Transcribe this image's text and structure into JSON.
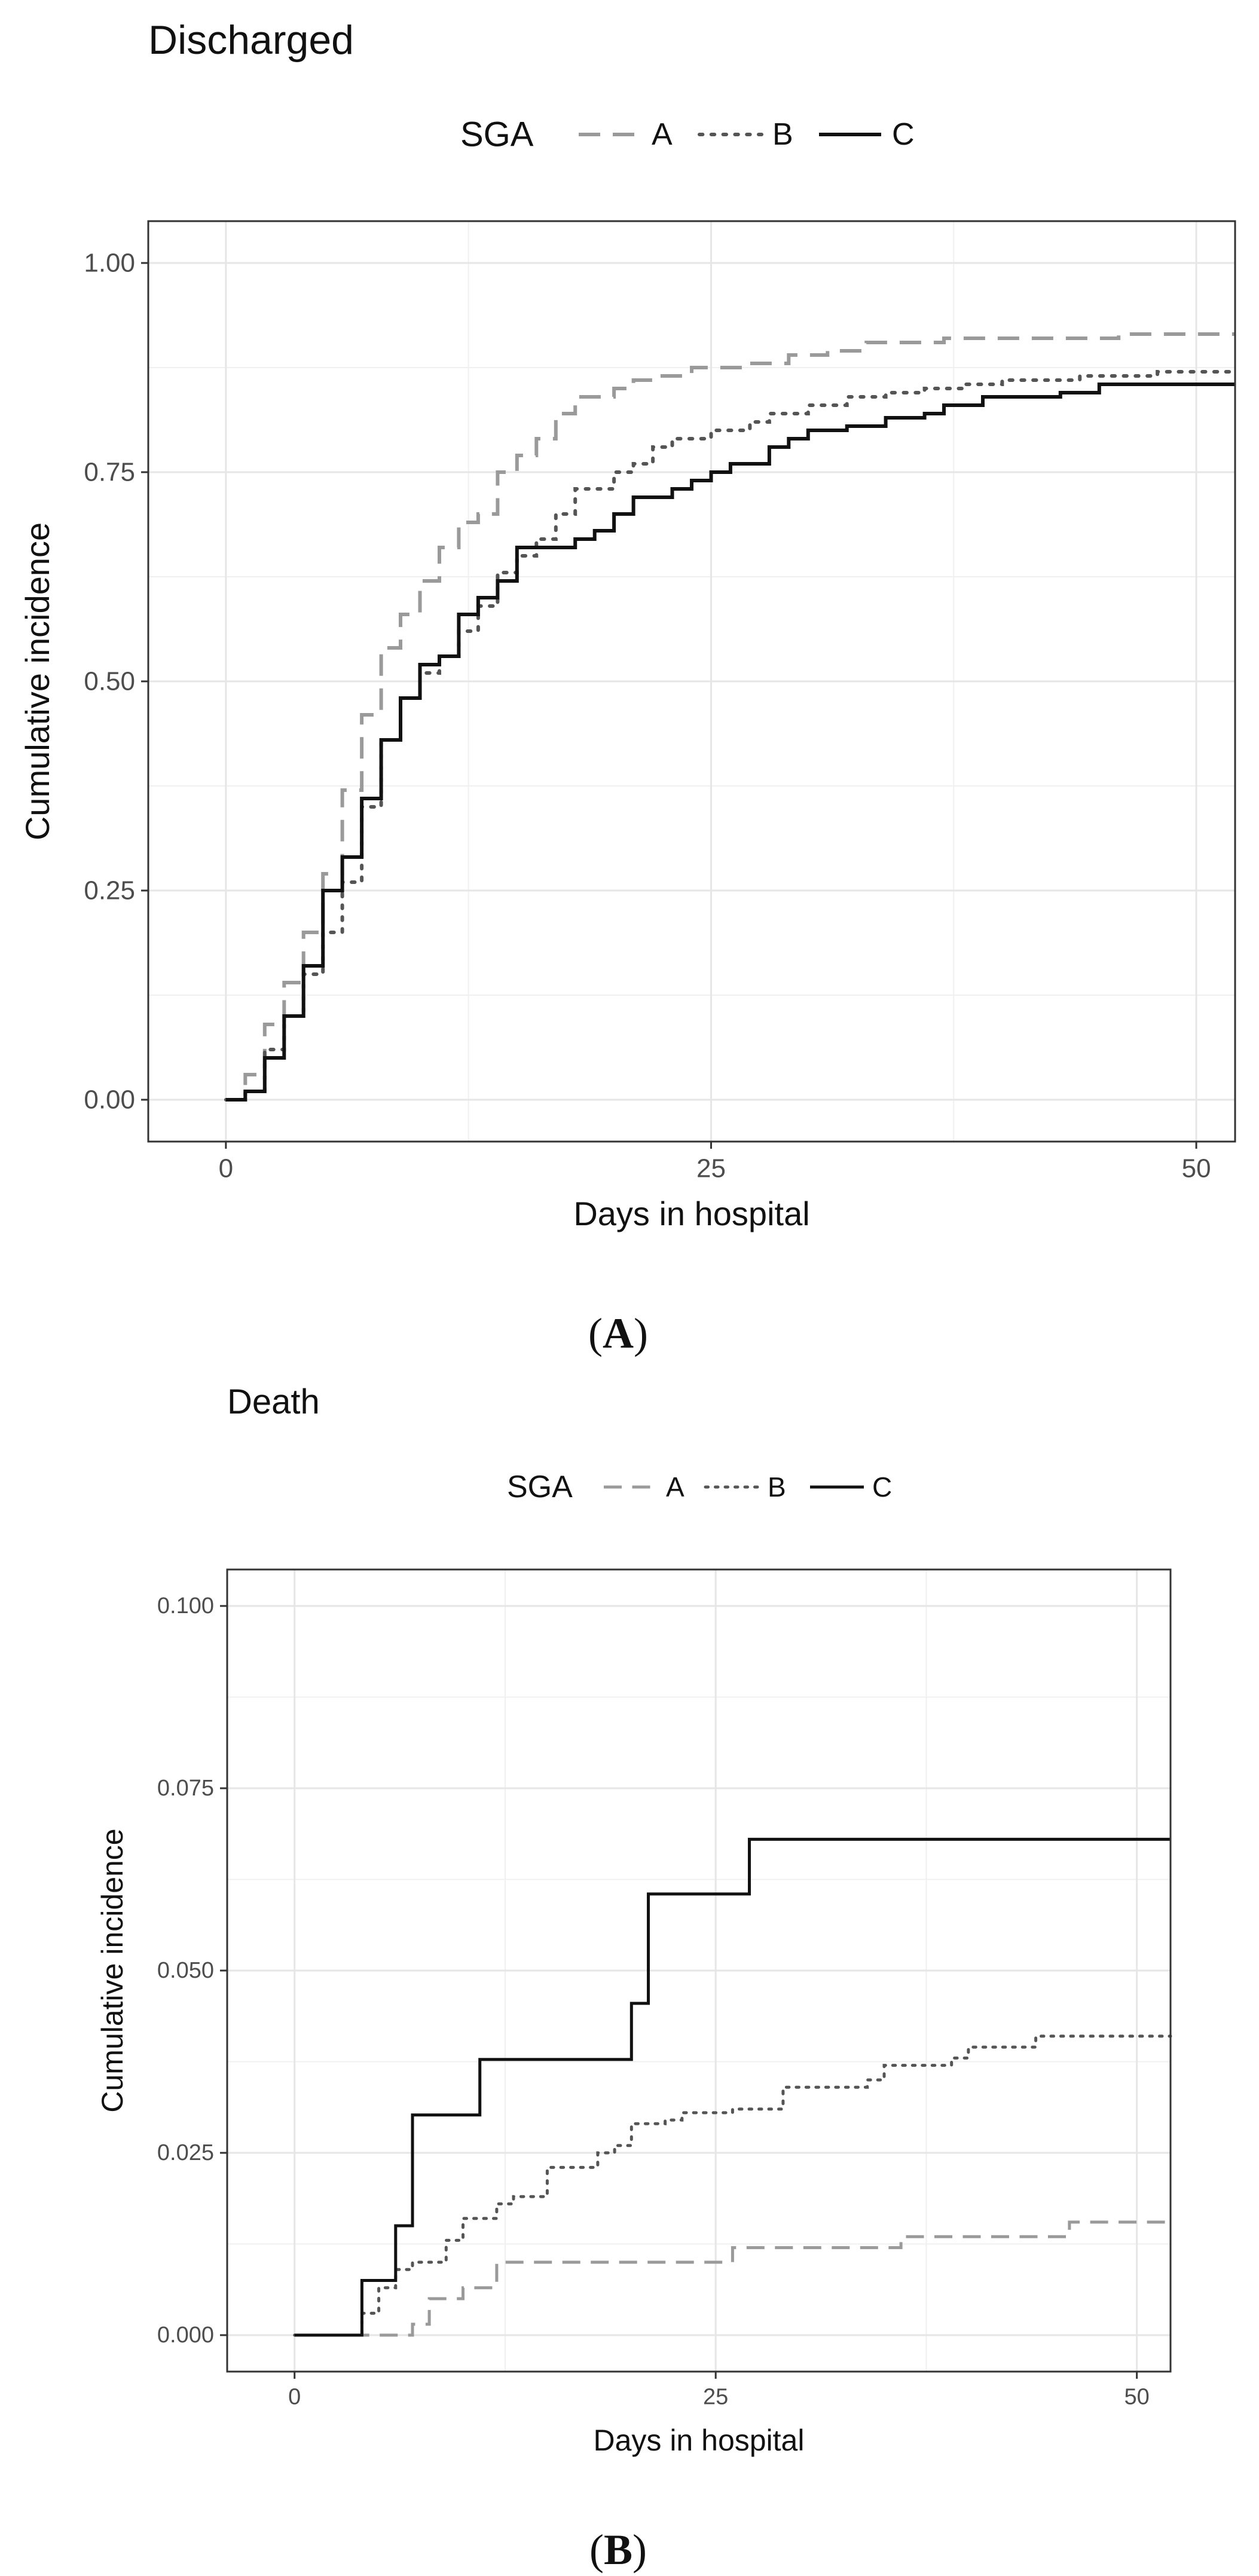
{
  "chart_data": [
    {
      "type": "line",
      "step": true,
      "panel_label": "A",
      "title": "Discharged",
      "xlabel": "Days in hospital",
      "ylabel": "Cumulative incidence",
      "xlim": [
        -4,
        52
      ],
      "ylim": [
        -0.05,
        1.05
      ],
      "x_ticks": [
        0,
        25,
        50
      ],
      "y_ticks": [
        0.0,
        0.25,
        0.5,
        0.75,
        1.0
      ],
      "x_tick_labels": [
        "0",
        "25",
        "50"
      ],
      "y_tick_labels": [
        "0.00",
        "0.25",
        "0.50",
        "0.75",
        "1.00"
      ],
      "grid": true,
      "legend": {
        "title": "SGA",
        "position": "top",
        "entries": [
          "A",
          "B",
          "C"
        ]
      },
      "series": [
        {
          "name": "A",
          "color": "#9a9a9a",
          "dash": "dashed",
          "points": [
            [
              0,
              0
            ],
            [
              1,
              0.03
            ],
            [
              2,
              0.09
            ],
            [
              3,
              0.14
            ],
            [
              4,
              0.2
            ],
            [
              5,
              0.27
            ],
            [
              6,
              0.37
            ],
            [
              7,
              0.46
            ],
            [
              8,
              0.54
            ],
            [
              9,
              0.58
            ],
            [
              10,
              0.62
            ],
            [
              11,
              0.66
            ],
            [
              12,
              0.69
            ],
            [
              13,
              0.7
            ],
            [
              14,
              0.75
            ],
            [
              15,
              0.77
            ],
            [
              16,
              0.79
            ],
            [
              17,
              0.82
            ],
            [
              18,
              0.84
            ],
            [
              20,
              0.85
            ],
            [
              21,
              0.86
            ],
            [
              22,
              0.865
            ],
            [
              24,
              0.875
            ],
            [
              27,
              0.88
            ],
            [
              29,
              0.89
            ],
            [
              31,
              0.895
            ],
            [
              33,
              0.905
            ],
            [
              37,
              0.91
            ],
            [
              44,
              0.91
            ],
            [
              46,
              0.915
            ],
            [
              52,
              0.915
            ]
          ]
        },
        {
          "name": "B",
          "color": "#555555",
          "dash": "dotted",
          "points": [
            [
              0,
              0
            ],
            [
              1,
              0.01
            ],
            [
              2,
              0.06
            ],
            [
              3,
              0.1
            ],
            [
              4,
              0.15
            ],
            [
              5,
              0.2
            ],
            [
              6,
              0.26
            ],
            [
              7,
              0.35
            ],
            [
              8,
              0.43
            ],
            [
              9,
              0.48
            ],
            [
              10,
              0.51
            ],
            [
              11,
              0.53
            ],
            [
              12,
              0.56
            ],
            [
              13,
              0.59
            ],
            [
              14,
              0.63
            ],
            [
              15,
              0.65
            ],
            [
              16,
              0.67
            ],
            [
              17,
              0.7
            ],
            [
              18,
              0.73
            ],
            [
              20,
              0.75
            ],
            [
              21,
              0.76
            ],
            [
              22,
              0.78
            ],
            [
              23,
              0.79
            ],
            [
              25,
              0.8
            ],
            [
              27,
              0.81
            ],
            [
              28,
              0.82
            ],
            [
              30,
              0.83
            ],
            [
              32,
              0.84
            ],
            [
              34,
              0.845
            ],
            [
              36,
              0.85
            ],
            [
              38,
              0.855
            ],
            [
              40,
              0.86
            ],
            [
              44,
              0.865
            ],
            [
              48,
              0.87
            ],
            [
              52,
              0.87
            ]
          ]
        },
        {
          "name": "C",
          "color": "#111111",
          "dash": "solid",
          "points": [
            [
              0,
              0
            ],
            [
              1,
              0.01
            ],
            [
              2,
              0.05
            ],
            [
              3,
              0.1
            ],
            [
              4,
              0.16
            ],
            [
              5,
              0.25
            ],
            [
              6,
              0.29
            ],
            [
              7,
              0.36
            ],
            [
              8,
              0.43
            ],
            [
              9,
              0.48
            ],
            [
              10,
              0.52
            ],
            [
              11,
              0.53
            ],
            [
              12,
              0.58
            ],
            [
              13,
              0.6
            ],
            [
              14,
              0.62
            ],
            [
              15,
              0.66
            ],
            [
              18,
              0.67
            ],
            [
              19,
              0.68
            ],
            [
              20,
              0.7
            ],
            [
              21,
              0.72
            ],
            [
              23,
              0.73
            ],
            [
              24,
              0.74
            ],
            [
              25,
              0.75
            ],
            [
              26,
              0.76
            ],
            [
              28,
              0.78
            ],
            [
              29,
              0.79
            ],
            [
              30,
              0.8
            ],
            [
              32,
              0.805
            ],
            [
              34,
              0.815
            ],
            [
              36,
              0.82
            ],
            [
              37,
              0.83
            ],
            [
              39,
              0.84
            ],
            [
              43,
              0.845
            ],
            [
              45,
              0.855
            ],
            [
              52,
              0.855
            ]
          ]
        }
      ]
    },
    {
      "type": "line",
      "step": true,
      "panel_label": "B",
      "title": "Death",
      "xlabel": "Days in hospital",
      "ylabel": "Cumulative incidence",
      "xlim": [
        -4,
        52
      ],
      "ylim": [
        -0.005,
        0.105
      ],
      "x_ticks": [
        0,
        25,
        50
      ],
      "y_ticks": [
        0.0,
        0.025,
        0.05,
        0.075,
        0.1
      ],
      "x_tick_labels": [
        "0",
        "25",
        "50"
      ],
      "y_tick_labels": [
        "0.000",
        "0.025",
        "0.050",
        "0.075",
        "0.100"
      ],
      "grid": true,
      "legend": {
        "title": "SGA",
        "position": "top",
        "entries": [
          "A",
          "B",
          "C"
        ]
      },
      "series": [
        {
          "name": "A",
          "color": "#9a9a9a",
          "dash": "dashed",
          "points": [
            [
              0,
              0
            ],
            [
              7,
              0.0015
            ],
            [
              8,
              0.005
            ],
            [
              10,
              0.0065
            ],
            [
              12,
              0.01
            ],
            [
              26,
              0.012
            ],
            [
              36,
              0.0135
            ],
            [
              46,
              0.0155
            ],
            [
              52,
              0.0155
            ]
          ]
        },
        {
          "name": "B",
          "color": "#555555",
          "dash": "dotted",
          "points": [
            [
              0,
              0
            ],
            [
              4,
              0.003
            ],
            [
              5,
              0.0065
            ],
            [
              6,
              0.009
            ],
            [
              7,
              0.01
            ],
            [
              9,
              0.013
            ],
            [
              10,
              0.016
            ],
            [
              12,
              0.018
            ],
            [
              13,
              0.019
            ],
            [
              15,
              0.023
            ],
            [
              18,
              0.025
            ],
            [
              19,
              0.026
            ],
            [
              20,
              0.029
            ],
            [
              22,
              0.0295
            ],
            [
              23,
              0.0305
            ],
            [
              26,
              0.031
            ],
            [
              29,
              0.034
            ],
            [
              34,
              0.035
            ],
            [
              35,
              0.037
            ],
            [
              39,
              0.038
            ],
            [
              40,
              0.0395
            ],
            [
              44,
              0.041
            ],
            [
              52,
              0.041
            ]
          ]
        },
        {
          "name": "C",
          "color": "#111111",
          "dash": "solid",
          "points": [
            [
              0,
              0
            ],
            [
              4,
              0.0075
            ],
            [
              6,
              0.015
            ],
            [
              7,
              0.0302
            ],
            [
              11,
              0.0378
            ],
            [
              20,
              0.0455
            ],
            [
              21,
              0.0605
            ],
            [
              27,
              0.068
            ],
            [
              52,
              0.068
            ]
          ]
        }
      ]
    }
  ]
}
